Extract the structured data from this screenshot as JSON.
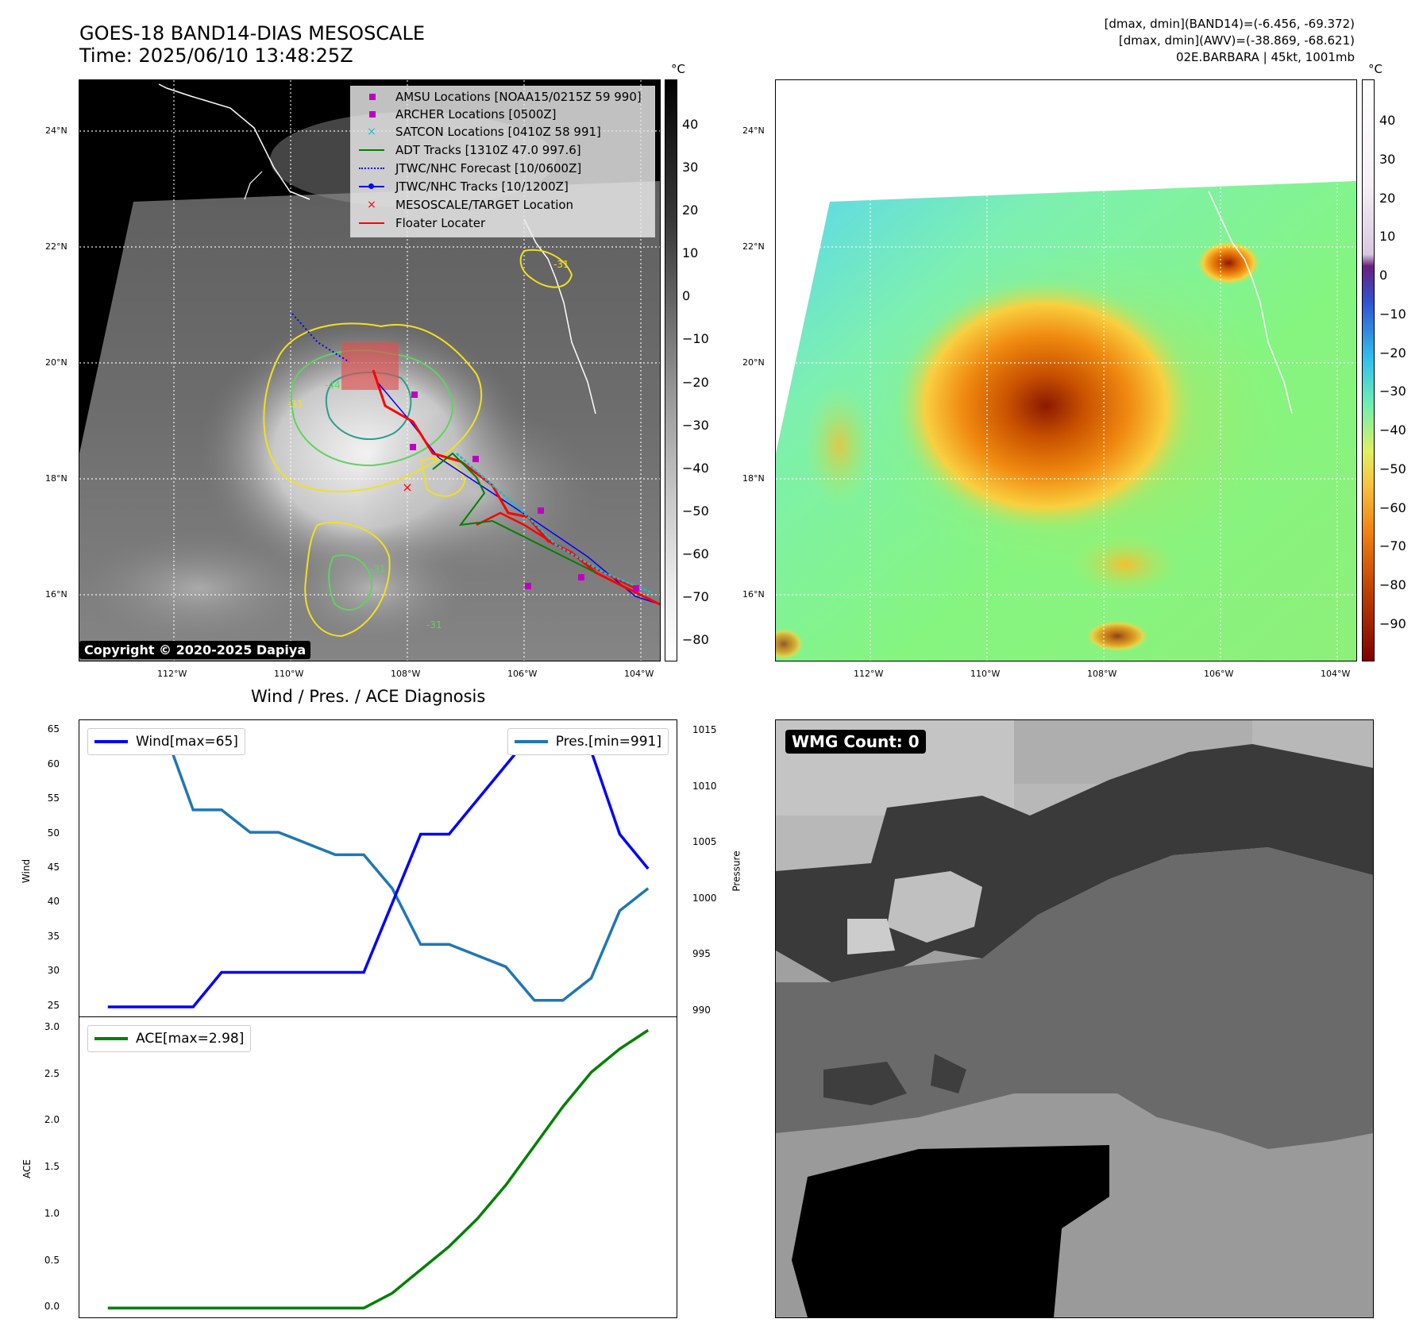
{
  "header": {
    "title_line1": "GOES-18 BAND14-DIAS MESOSCALE",
    "title_line2": "Time: 2025/06/10 13:48:25Z",
    "right_line1": "[dmax, dmin](BAND14)=(-6.456, -69.372)",
    "right_line2": "[dmax, dmin](AWV)=(-38.869, -68.621)",
    "right_line3": "02E.BARBARA | 45kt, 1001mb"
  },
  "map_axes": {
    "lon_labels": [
      "112°W",
      "110°W",
      "108°W",
      "106°W",
      "104°W"
    ],
    "lat_labels": [
      "24°N",
      "22°N",
      "20°N",
      "18°N",
      "16°N"
    ]
  },
  "colorbar_left": {
    "unit": "°C",
    "ticks": [
      "40",
      "30",
      "20",
      "10",
      "0",
      "−10",
      "−20",
      "−30",
      "−40",
      "−50",
      "−60",
      "−70",
      "−80"
    ]
  },
  "colorbar_right": {
    "unit": "°C",
    "ticks": [
      "40",
      "30",
      "20",
      "10",
      "0",
      "−10",
      "−20",
      "−30",
      "−40",
      "−50",
      "−60",
      "−70",
      "−80",
      "−90"
    ]
  },
  "map_legend": [
    {
      "label": "AMSU Locations [NOAA15/0215Z 59 990]",
      "symbol": "square",
      "color": "#c000c0"
    },
    {
      "label": "ARCHER Locations [0500Z]",
      "symbol": "square",
      "color": "#c000c0"
    },
    {
      "label": "SATCON Locations [0410Z 58 991]",
      "symbol": "x",
      "color": "#17becf"
    },
    {
      "label": "ADT Tracks [1310Z 47.0 997.6]",
      "symbol": "line",
      "color": "#008000"
    },
    {
      "label": "JTWC/NHC Forecast [10/0600Z]",
      "symbol": "dotted",
      "color": "#0000ff"
    },
    {
      "label": "JTWC/NHC Tracks [10/1200Z]",
      "symbol": "dotline",
      "color": "#0000ff"
    },
    {
      "label": "MESOSCALE/TARGET Location",
      "symbol": "x",
      "color": "#ff0000"
    },
    {
      "label": "Floater Locater",
      "symbol": "line",
      "color": "#ff0000"
    }
  ],
  "copyright": "Copyright © 2020-2025 Dapiya",
  "contour_labels": [
    "-31",
    "-31",
    "-31",
    "-31",
    "-44",
    "-31"
  ],
  "diag_title": "Wind / Pres. / ACE Diagnosis",
  "wmg_label": "WMG Count: 0",
  "chart_data": [
    {
      "type": "line",
      "x": [
        0,
        1,
        2,
        3,
        4,
        5,
        6,
        7,
        8,
        9,
        10,
        11,
        12,
        13,
        14,
        15,
        16,
        17,
        18,
        19
      ],
      "series": [
        {
          "name": "Wind[max=65]",
          "color": "#0000ff",
          "axis": "left",
          "values": [
            25,
            25,
            25,
            25,
            30,
            30,
            30,
            30,
            30,
            30,
            40,
            50,
            50,
            55,
            60,
            65,
            65,
            62,
            50,
            45
          ]
        },
        {
          "name": "Pres.[min=991]",
          "color": "#1f77b4",
          "axis": "right",
          "values": [
            1015,
            1015,
            1015,
            1008,
            1008,
            1006,
            1006,
            1005,
            1004,
            1004,
            1001,
            996,
            996,
            995,
            994,
            991,
            991,
            993,
            999,
            1001
          ]
        }
      ],
      "ylabel": "Wind",
      "ylabel_right": "Pressure",
      "ylim": [
        23.5,
        66.5
      ],
      "ylim_right": [
        989.5,
        1016
      ],
      "yticks": [
        "65",
        "60",
        "55",
        "50",
        "45",
        "40",
        "35",
        "30",
        "25"
      ],
      "yticks_right": [
        "1015",
        "1010",
        "1005",
        "1000",
        "995",
        "990"
      ]
    },
    {
      "type": "line",
      "x": [
        0,
        1,
        2,
        3,
        4,
        5,
        6,
        7,
        8,
        9,
        10,
        11,
        12,
        13,
        14,
        15,
        16,
        17,
        18,
        19
      ],
      "series": [
        {
          "name": "ACE[max=2.98]",
          "color": "#008000",
          "values": [
            0,
            0,
            0,
            0,
            0,
            0,
            0,
            0,
            0,
            0,
            0.16,
            0.41,
            0.66,
            0.96,
            1.32,
            1.74,
            2.16,
            2.53,
            2.78,
            2.98
          ]
        }
      ],
      "ylabel": "ACE",
      "ylim": [
        -0.1,
        3.12
      ],
      "yticks": [
        "3.0",
        "2.5",
        "2.0",
        "1.5",
        "1.0",
        "0.5",
        "0.0"
      ]
    }
  ]
}
